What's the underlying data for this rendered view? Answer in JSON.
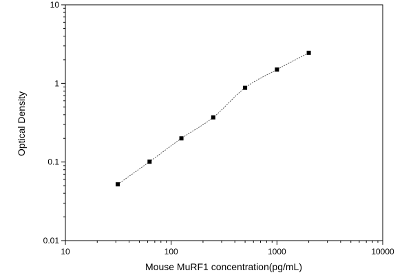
{
  "chart_data": {
    "type": "scatter",
    "xlabel": "Mouse MuRF1 concentration(pg/mL)",
    "ylabel": "Optical Density",
    "x_scale": "log",
    "y_scale": "log",
    "xlim": [
      10,
      10000
    ],
    "ylim": [
      0.01,
      10
    ],
    "x_ticks": [
      "10",
      "100",
      "1000",
      "10000"
    ],
    "y_ticks": [
      "0.01",
      "0.1",
      "1",
      "10"
    ],
    "grid": false,
    "legend": "none",
    "marker_color": "#000000",
    "curve_color": "#555555",
    "series": [
      {
        "x": [
          31.25,
          62.5,
          125,
          250,
          500,
          1000,
          2000
        ],
        "y": [
          0.052,
          0.101,
          0.2,
          0.37,
          0.88,
          1.5,
          2.45
        ]
      }
    ]
  }
}
